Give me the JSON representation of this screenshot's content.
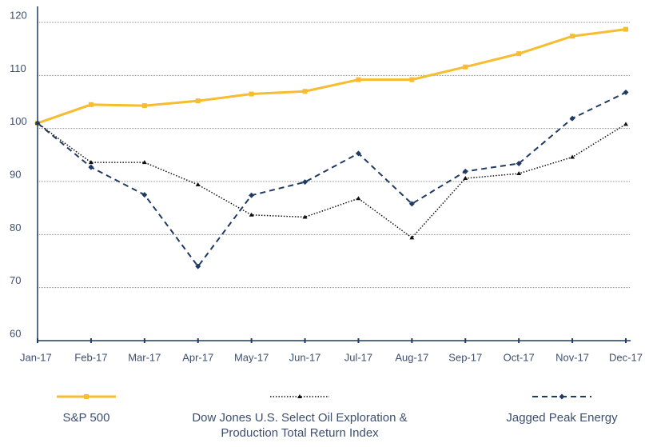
{
  "chart_data": {
    "type": "line",
    "categories": [
      "Jan-17",
      "Feb-17",
      "Mar-17",
      "Apr-17",
      "May-17",
      "Jun-17",
      "Jul-17",
      "Aug-17",
      "Sep-17",
      "Oct-17",
      "Nov-17",
      "Dec-17"
    ],
    "series": [
      {
        "name": "S&P 500",
        "color": "#f5bd2f",
        "values": [
          101,
          104.5,
          104.3,
          105.2,
          106.5,
          107,
          109.2,
          109.2,
          111.6,
          114.1,
          117.4,
          118.7
        ]
      },
      {
        "name": "Dow Jones U.S. Select Oil Exploration & Production Total Return Index",
        "color": "#111111",
        "values": [
          101,
          93.6,
          93.6,
          89.4,
          83.7,
          83.3,
          86.8,
          79.4,
          90.6,
          91.5,
          94.6,
          100.8
        ]
      },
      {
        "name": "Jagged Peak Energy",
        "color": "#1f3a63",
        "values": [
          101,
          92.7,
          87.5,
          74,
          87.4,
          89.9,
          95.3,
          85.8,
          91.9,
          93.4,
          101.9,
          106.8
        ]
      }
    ],
    "ylim": [
      60,
      120
    ],
    "yticks": [
      60,
      70,
      80,
      90,
      100,
      110,
      120
    ],
    "grid": true
  }
}
